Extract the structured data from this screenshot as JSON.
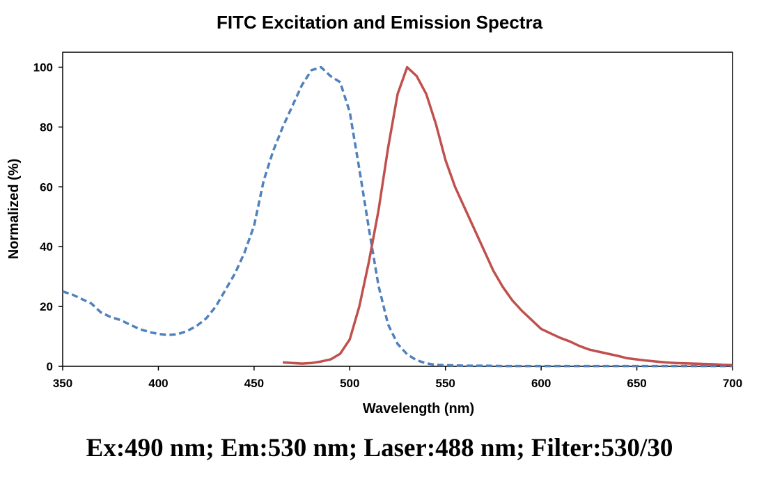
{
  "caption": "Ex:490 nm; Em:530 nm; Laser:488 nm; Filter:530/30",
  "chart_data": {
    "type": "line",
    "title": "FITC Excitation and Emission Spectra",
    "xlabel": "Wavelength (nm)",
    "ylabel": "Normalized (%)",
    "xlim": [
      350,
      700
    ],
    "ylim": [
      0,
      105
    ],
    "xticks": [
      "350",
      "400",
      "450",
      "500",
      "550",
      "600",
      "650",
      "700"
    ],
    "yticks": [
      "0",
      "20",
      "40",
      "60",
      "80",
      "100"
    ],
    "grid": false,
    "legend": "none",
    "series": [
      {
        "key": "excitation",
        "color": "#4F81BD",
        "style": "dashed",
        "x": [
          350,
          355,
          360,
          365,
          370,
          375,
          380,
          385,
          390,
          395,
          400,
          405,
          410,
          415,
          420,
          425,
          430,
          435,
          440,
          445,
          450,
          455,
          460,
          465,
          470,
          475,
          480,
          485,
          490,
          495,
          500,
          505,
          510,
          515,
          520,
          525,
          530,
          535,
          540,
          545,
          550,
          555,
          560,
          570,
          580,
          590,
          600,
          620,
          640,
          660,
          680,
          700
        ],
        "y": [
          25,
          24,
          22.5,
          21,
          18,
          16.5,
          15.5,
          14,
          12.5,
          11.5,
          10.8,
          10.5,
          10.7,
          11.8,
          13.5,
          16,
          20,
          25.5,
          31,
          38,
          47,
          62,
          72,
          80,
          87,
          94,
          99,
          100,
          97,
          95,
          85,
          66,
          46,
          27,
          14,
          7.5,
          4,
          2,
          1,
          0.5,
          0.4,
          0.3,
          0.2,
          0.2,
          0.1,
          0.1,
          0.1,
          0.1,
          0.1,
          0.1,
          0.1,
          0.1
        ]
      },
      {
        "key": "emission",
        "color": "#C0504D",
        "style": "solid",
        "x": [
          465,
          470,
          475,
          480,
          485,
          490,
          495,
          500,
          505,
          510,
          515,
          520,
          525,
          530,
          535,
          540,
          545,
          550,
          555,
          560,
          565,
          570,
          575,
          580,
          585,
          590,
          595,
          600,
          605,
          610,
          615,
          620,
          625,
          630,
          635,
          640,
          645,
          650,
          655,
          660,
          665,
          670,
          675,
          680,
          685,
          690,
          695,
          700
        ],
        "y": [
          1.3,
          1.1,
          0.9,
          1.1,
          1.6,
          2.3,
          4.2,
          9,
          20,
          35,
          52,
          73,
          91,
          100,
          97,
          91,
          81,
          69,
          60,
          53,
          46,
          39,
          32,
          26.5,
          22,
          18.5,
          15.5,
          12.5,
          11,
          9.5,
          8.3,
          6.8,
          5.6,
          4.9,
          4.2,
          3.5,
          2.7,
          2.3,
          1.9,
          1.6,
          1.3,
          1.1,
          1,
          0.9,
          0.8,
          0.7,
          0.5,
          0.4
        ]
      }
    ]
  }
}
